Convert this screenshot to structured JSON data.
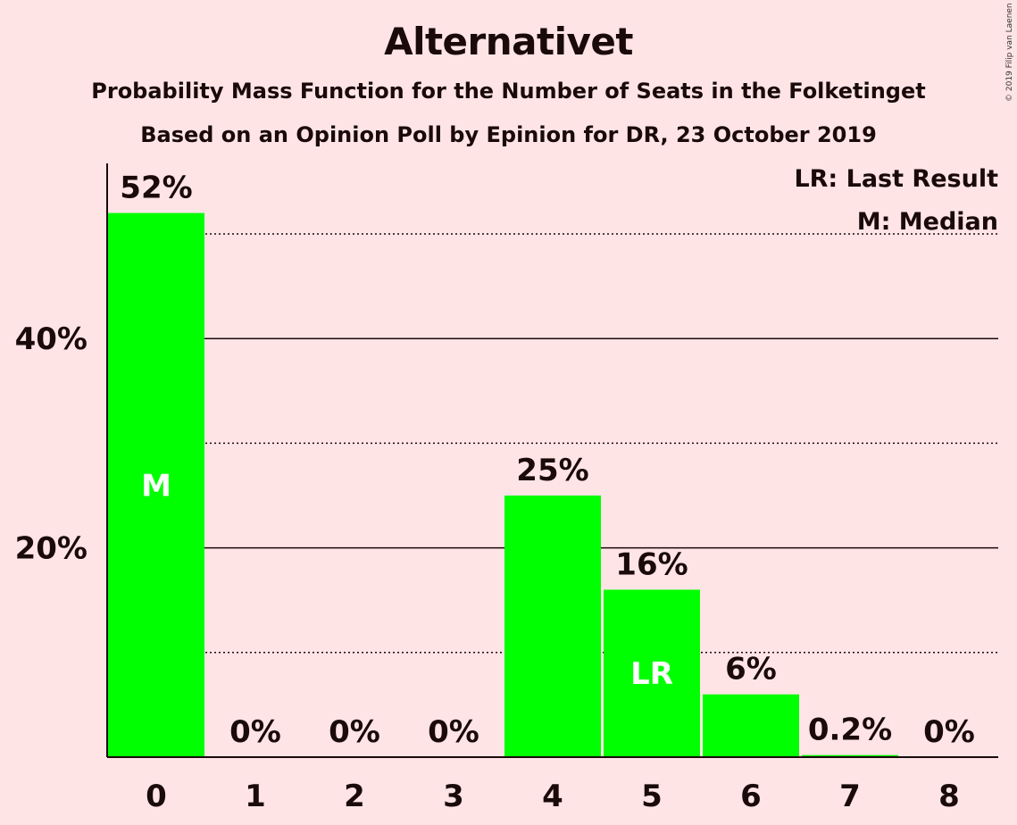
{
  "title": "Alternativet",
  "subtitle1": "Probability Mass Function for the Number of Seats in the Folketinget",
  "subtitle2": "Based on an Opinion Poll by Epinion for DR, 23 October 2019",
  "copyright": "© 2019 Filip van Laenen",
  "legend": {
    "lr": "LR: Last Result",
    "m": "M: Median"
  },
  "colors": {
    "background": "#FFE4E6",
    "bar": "#00FF00",
    "axis": "#1a0a0a"
  },
  "chart_data": {
    "type": "bar",
    "categories": [
      "0",
      "1",
      "2",
      "3",
      "4",
      "5",
      "6",
      "7",
      "8"
    ],
    "values": [
      52,
      0,
      0,
      0,
      25,
      16,
      6,
      0.2,
      0
    ],
    "labels": [
      "52%",
      "0%",
      "0%",
      "0%",
      "25%",
      "16%",
      "6%",
      "0.2%",
      "0%"
    ],
    "ylim": [
      0,
      56.5
    ],
    "major_ticks": [
      20,
      40
    ],
    "major_tick_labels": [
      "20%",
      "40%"
    ],
    "minor_gridlines": [
      10,
      30,
      50
    ],
    "median_index": 0,
    "median_label": "M",
    "last_result_index": 5,
    "last_result_label": "LR",
    "legend_placement": "top-right"
  }
}
